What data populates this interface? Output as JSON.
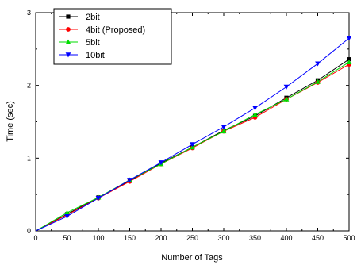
{
  "chart_data": {
    "type": "line",
    "title": "",
    "xlabel": "Number of Tags",
    "ylabel": "Time (sec)",
    "xlim": [
      0,
      500
    ],
    "ylim": [
      0,
      3
    ],
    "x_ticks": [
      0,
      50,
      100,
      150,
      200,
      250,
      300,
      350,
      400,
      450,
      500
    ],
    "y_ticks": [
      0,
      1,
      2,
      3
    ],
    "grid": false,
    "legend_position": "top-left",
    "x": [
      0,
      50,
      100,
      150,
      200,
      250,
      300,
      350,
      400,
      450,
      500
    ],
    "series": [
      {
        "name": "2bit",
        "color": "#000000",
        "marker": "square",
        "values": [
          0,
          0.23,
          0.46,
          0.69,
          0.93,
          1.15,
          1.38,
          1.58,
          1.83,
          2.07,
          2.36
        ]
      },
      {
        "name": "4bit (Proposed)",
        "color": "#ff0000",
        "marker": "circle",
        "values": [
          0,
          0.22,
          0.45,
          0.68,
          0.92,
          1.14,
          1.37,
          1.56,
          1.81,
          2.04,
          2.29
        ]
      },
      {
        "name": "5bit",
        "color": "#00dd00",
        "marker": "triangle-up",
        "values": [
          0,
          0.25,
          0.46,
          0.7,
          0.92,
          1.15,
          1.37,
          1.6,
          1.81,
          2.05,
          2.32
        ]
      },
      {
        "name": "10bit",
        "color": "#0000ff",
        "marker": "triangle-down",
        "values": [
          0,
          0.2,
          0.45,
          0.7,
          0.94,
          1.19,
          1.43,
          1.69,
          1.98,
          2.3,
          2.65
        ]
      }
    ]
  }
}
